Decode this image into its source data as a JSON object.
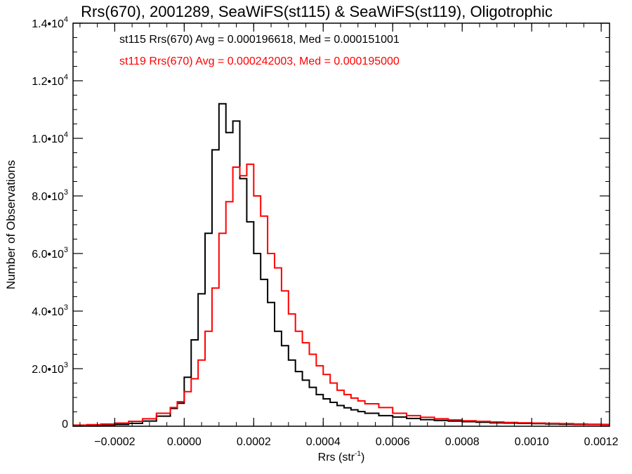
{
  "chart_data": {
    "type": "histogram",
    "title": "Rrs(670), 2001289, SeaWiFS(st115) & SeaWiFS(st119), Oligotrophic",
    "xlabel": "Rrs (str",
    "xlabel_sup": "-1",
    "xlabel_end": ")",
    "ylabel": "Number of Observations",
    "xlim": [
      -0.00032,
      0.001224
    ],
    "ylim": [
      0,
      14000
    ],
    "x_ticks": [
      {
        "value": -0.0002,
        "label": "−0.0002"
      },
      {
        "value": 0.0,
        "label": "0.0000"
      },
      {
        "value": 0.0002,
        "label": "0.0002"
      },
      {
        "value": 0.0004,
        "label": "0.0004"
      },
      {
        "value": 0.0006,
        "label": "0.0006"
      },
      {
        "value": 0.0008,
        "label": "0.0008"
      },
      {
        "value": 0.001,
        "label": "0.0010"
      },
      {
        "value": 0.0012,
        "label": "0.0012"
      }
    ],
    "x_minor_step": 5e-05,
    "y_ticks": [
      {
        "value": 0,
        "label": "0",
        "exp": ""
      },
      {
        "value": 2000,
        "label": "2.0•10",
        "exp": "3"
      },
      {
        "value": 4000,
        "label": "4.0•10",
        "exp": "3"
      },
      {
        "value": 6000,
        "label": "6.0•10",
        "exp": "3"
      },
      {
        "value": 8000,
        "label": "8.0•10",
        "exp": "3"
      },
      {
        "value": 10000,
        "label": "1.0•10",
        "exp": "4"
      },
      {
        "value": 12000,
        "label": "1.2•10",
        "exp": "4"
      },
      {
        "value": 14000,
        "label": "1.4•10",
        "exp": "4"
      }
    ],
    "y_minor_step": 500,
    "bin_edges": [
      -0.00032,
      -0.00028,
      -0.00024,
      -0.0002,
      -0.00016,
      -0.00012,
      -8e-05,
      -4e-05,
      -2e-05,
      0.0,
      2e-05,
      4e-05,
      6e-05,
      8e-05,
      0.0001,
      0.00012,
      0.00014,
      0.00016,
      0.00018,
      0.0002,
      0.00022,
      0.00024,
      0.00026,
      0.00028,
      0.0003,
      0.00032,
      0.00034,
      0.00036,
      0.00038,
      0.0004,
      0.00042,
      0.00044,
      0.00046,
      0.00048,
      0.0005,
      0.00052,
      0.00056,
      0.0006,
      0.00064,
      0.00068,
      0.00072,
      0.00076,
      0.0008,
      0.00084,
      0.00088,
      0.00092,
      0.00096,
      0.001,
      0.00104,
      0.00108,
      0.00112,
      0.00116,
      0.0012,
      0.00124
    ],
    "series": [
      {
        "name": "st115",
        "color": "#000000",
        "legend": "st115 Rrs(670) Avg = 0.000196618, Med = 0.000151001",
        "values": [
          20,
          30,
          40,
          60,
          100,
          180,
          350,
          620,
          800,
          1700,
          3000,
          4600,
          6700,
          9600,
          11200,
          10200,
          10600,
          8600,
          7100,
          6000,
          5100,
          4300,
          3300,
          2800,
          2300,
          1900,
          1600,
          1350,
          1100,
          950,
          830,
          720,
          640,
          570,
          510,
          450,
          370,
          320,
          270,
          230,
          200,
          180,
          160,
          140,
          120,
          110,
          100,
          90,
          80,
          70,
          65,
          60,
          55
        ]
      },
      {
        "name": "st119",
        "color": "#ff0000",
        "legend": "st119 Rrs(670) Avg = 0.000242003, Med = 0.000195000",
        "values": [
          40,
          55,
          75,
          110,
          170,
          260,
          450,
          650,
          850,
          1200,
          1650,
          2300,
          3300,
          4800,
          6700,
          7800,
          9000,
          8700,
          9100,
          8000,
          7300,
          6000,
          5500,
          4700,
          3900,
          3300,
          2900,
          2500,
          2100,
          1800,
          1500,
          1250,
          1100,
          980,
          880,
          780,
          650,
          450,
          370,
          310,
          260,
          220,
          190,
          170,
          150,
          130,
          120,
          110,
          100,
          90,
          80,
          70,
          65
        ]
      }
    ],
    "grid": false,
    "legend_placement": "top-left"
  }
}
